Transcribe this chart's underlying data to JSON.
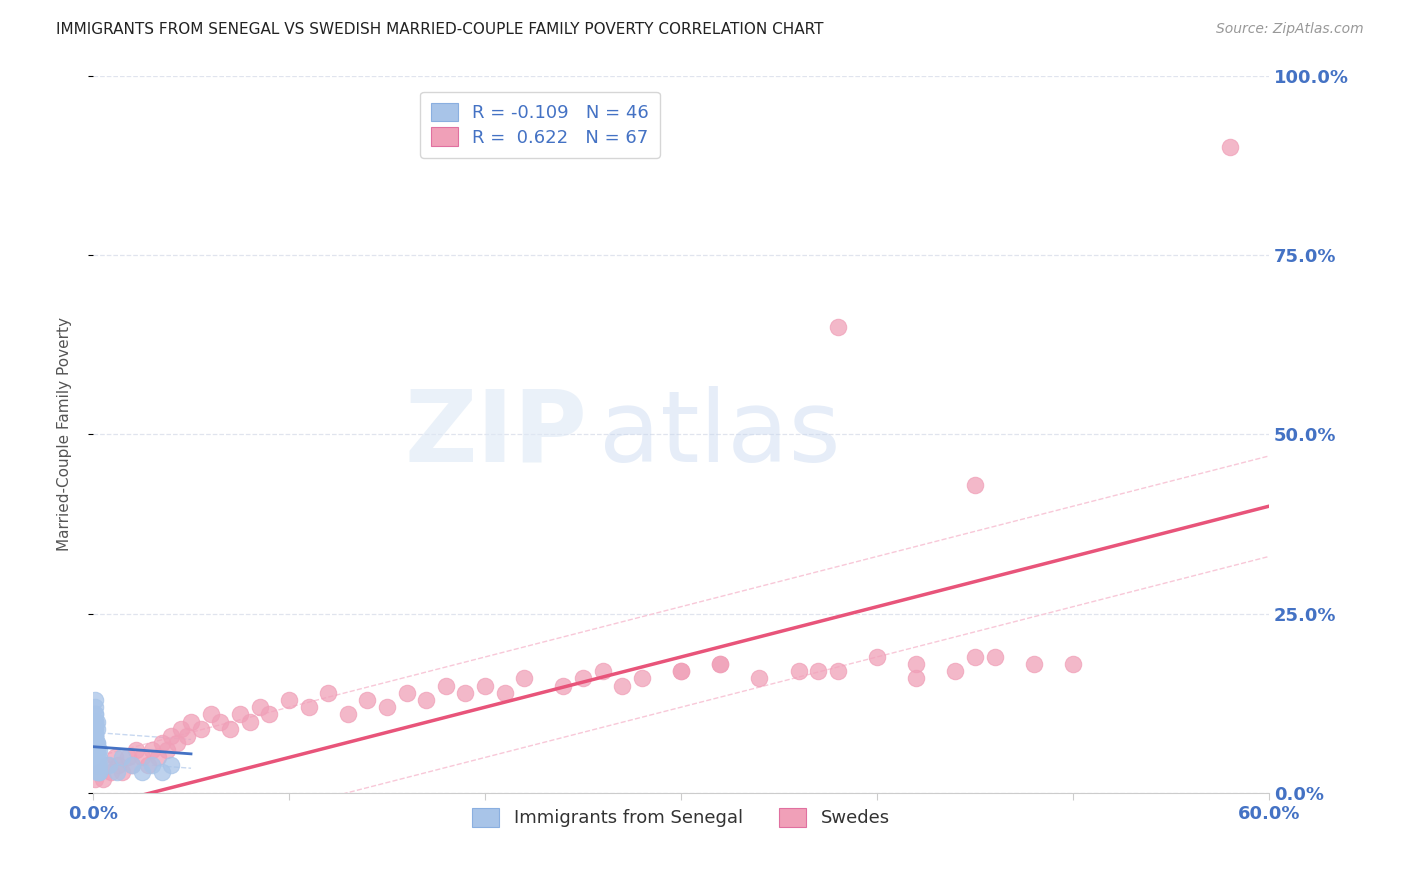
{
  "title": "IMMIGRANTS FROM SENEGAL VS SWEDISH MARRIED-COUPLE FAMILY POVERTY CORRELATION CHART",
  "source": "Source: ZipAtlas.com",
  "ylabel": "Married-Couple Family Poverty",
  "xlim": [
    0.0,
    0.6
  ],
  "ylim": [
    0.0,
    1.0
  ],
  "yticks": [
    0.0,
    0.25,
    0.5,
    0.75,
    1.0
  ],
  "ytick_labels": [
    "0.0%",
    "25.0%",
    "50.0%",
    "75.0%",
    "100.0%"
  ],
  "xticks": [
    0.0,
    0.1,
    0.2,
    0.3,
    0.4,
    0.5,
    0.6
  ],
  "legend_blue_label": "R = -0.109   N = 46",
  "legend_pink_label": "R =  0.622   N = 67",
  "blue_color": "#a8c4e8",
  "pink_color": "#f0a0b8",
  "blue_line_color": "#4472c4",
  "pink_line_color": "#e8547a",
  "blue_dash_color": "#c8d8f0",
  "pink_dash_color": "#f8c8d8",
  "grid_color": "#e0e4ee",
  "axis_color": "#cccccc",
  "tick_color": "#4472c4",
  "blue_scatter_x": [
    0.001,
    0.001,
    0.002,
    0.001,
    0.002,
    0.001,
    0.003,
    0.002,
    0.001,
    0.002,
    0.001,
    0.002,
    0.001,
    0.003,
    0.002,
    0.001,
    0.002,
    0.001,
    0.002,
    0.001,
    0.002,
    0.003,
    0.001,
    0.002,
    0.001,
    0.002,
    0.001,
    0.003,
    0.002,
    0.001,
    0.002,
    0.001,
    0.002,
    0.001,
    0.002,
    0.003,
    0.001,
    0.002,
    0.008,
    0.012,
    0.015,
    0.02,
    0.025,
    0.03,
    0.035,
    0.04
  ],
  "blue_scatter_y": [
    0.05,
    0.08,
    0.03,
    0.1,
    0.06,
    0.12,
    0.04,
    0.07,
    0.09,
    0.05,
    0.11,
    0.06,
    0.08,
    0.03,
    0.1,
    0.07,
    0.05,
    0.13,
    0.04,
    0.09,
    0.06,
    0.05,
    0.11,
    0.07,
    0.08,
    0.04,
    0.06,
    0.03,
    0.09,
    0.1,
    0.05,
    0.07,
    0.06,
    0.08,
    0.04,
    0.06,
    0.1,
    0.05,
    0.04,
    0.03,
    0.05,
    0.04,
    0.03,
    0.04,
    0.03,
    0.04
  ],
  "pink_scatter_x": [
    0.001,
    0.003,
    0.005,
    0.007,
    0.009,
    0.011,
    0.013,
    0.015,
    0.018,
    0.02,
    0.022,
    0.025,
    0.028,
    0.03,
    0.033,
    0.035,
    0.038,
    0.04,
    0.043,
    0.045,
    0.048,
    0.05,
    0.055,
    0.06,
    0.065,
    0.07,
    0.075,
    0.08,
    0.085,
    0.09,
    0.1,
    0.11,
    0.12,
    0.13,
    0.14,
    0.15,
    0.16,
    0.17,
    0.18,
    0.19,
    0.2,
    0.21,
    0.22,
    0.24,
    0.26,
    0.28,
    0.3,
    0.32,
    0.34,
    0.36,
    0.38,
    0.4,
    0.42,
    0.44,
    0.46,
    0.48,
    0.5,
    0.25,
    0.27,
    0.3,
    0.32,
    0.37,
    0.42,
    0.45,
    0.38,
    0.45,
    0.58
  ],
  "pink_scatter_y": [
    0.02,
    0.03,
    0.02,
    0.04,
    0.03,
    0.05,
    0.04,
    0.03,
    0.05,
    0.04,
    0.06,
    0.05,
    0.04,
    0.06,
    0.05,
    0.07,
    0.06,
    0.08,
    0.07,
    0.09,
    0.08,
    0.1,
    0.09,
    0.11,
    0.1,
    0.09,
    0.11,
    0.1,
    0.12,
    0.11,
    0.13,
    0.12,
    0.14,
    0.11,
    0.13,
    0.12,
    0.14,
    0.13,
    0.15,
    0.14,
    0.15,
    0.14,
    0.16,
    0.15,
    0.17,
    0.16,
    0.17,
    0.18,
    0.16,
    0.17,
    0.17,
    0.19,
    0.18,
    0.17,
    0.19,
    0.18,
    0.18,
    0.16,
    0.15,
    0.17,
    0.18,
    0.17,
    0.16,
    0.19,
    0.65,
    0.43,
    0.9
  ],
  "pink_trend_x0": 0.0,
  "pink_trend_y0": -0.02,
  "pink_trend_x1": 0.6,
  "pink_trend_y1": 0.4,
  "blue_trend_x0": 0.0,
  "blue_trend_y0": 0.065,
  "blue_trend_x1": 0.05,
  "blue_trend_y1": 0.055
}
